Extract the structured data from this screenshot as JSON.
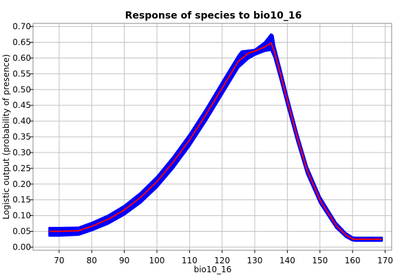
{
  "chart_data": {
    "type": "line",
    "title": "Response of species to bio10_16",
    "xlabel": "bio10_16",
    "ylabel": "Logistic output (probability of presence)",
    "xlim": [
      62,
      172
    ],
    "ylim": [
      -0.01,
      0.71
    ],
    "xticks": [
      70,
      80,
      90,
      100,
      110,
      120,
      130,
      140,
      150,
      160,
      170
    ],
    "yticks": [
      0.0,
      0.05,
      0.1,
      0.15,
      0.2,
      0.25,
      0.3,
      0.35,
      0.4,
      0.45,
      0.5,
      0.55,
      0.6,
      0.65,
      0.7
    ],
    "ytick_labels": [
      "0.00",
      "0.05",
      "0.10",
      "0.15",
      "0.20",
      "0.25",
      "0.30",
      "0.35",
      "0.40",
      "0.45",
      "0.50",
      "0.55",
      "0.60",
      "0.65",
      "0.70"
    ],
    "grid": true,
    "colors": {
      "mean": "#ff0000",
      "band": "#0000ff"
    },
    "series": [
      {
        "x": [
          67,
          70,
          76,
          80,
          85,
          90,
          95,
          100,
          105,
          110,
          115,
          120,
          125,
          128,
          130,
          133,
          135,
          136,
          138,
          140,
          143,
          146,
          150,
          155,
          158,
          160,
          161,
          165,
          169
        ],
        "values": [
          0.05,
          0.05,
          0.052,
          0.066,
          0.088,
          0.118,
          0.158,
          0.208,
          0.27,
          0.34,
          0.42,
          0.505,
          0.59,
          0.615,
          0.622,
          0.635,
          0.648,
          0.622,
          0.545,
          0.465,
          0.35,
          0.245,
          0.15,
          0.068,
          0.038,
          0.026,
          0.025,
          0.025,
          0.025
        ]
      },
      {
        "x": [
          67,
          70,
          76,
          80,
          85,
          90,
          95,
          100,
          105,
          110,
          115,
          120,
          125,
          126,
          130,
          133,
          134,
          135,
          135.5,
          136,
          138,
          140,
          143,
          146,
          150,
          155,
          158,
          160,
          161,
          165,
          169
        ],
        "values": [
          0.061,
          0.061,
          0.062,
          0.077,
          0.1,
          0.131,
          0.172,
          0.223,
          0.286,
          0.357,
          0.437,
          0.523,
          0.608,
          0.621,
          0.626,
          0.649,
          0.662,
          0.675,
          0.672,
          0.64,
          0.56,
          0.478,
          0.362,
          0.256,
          0.16,
          0.076,
          0.044,
          0.031,
          0.03,
          0.03,
          0.03
        ]
      },
      {
        "x": [
          67,
          70,
          76,
          80,
          85,
          90,
          95,
          100,
          105,
          110,
          115,
          120,
          125,
          128,
          130,
          133,
          135,
          136,
          138,
          140,
          143,
          146,
          150,
          155,
          158,
          160,
          161,
          165,
          169
        ],
        "values": [
          0.036,
          0.036,
          0.039,
          0.053,
          0.074,
          0.103,
          0.141,
          0.19,
          0.251,
          0.321,
          0.4,
          0.485,
          0.57,
          0.598,
          0.61,
          0.622,
          0.626,
          0.603,
          0.528,
          0.45,
          0.337,
          0.233,
          0.14,
          0.061,
          0.032,
          0.021,
          0.02,
          0.02,
          0.02
        ]
      }
    ]
  }
}
